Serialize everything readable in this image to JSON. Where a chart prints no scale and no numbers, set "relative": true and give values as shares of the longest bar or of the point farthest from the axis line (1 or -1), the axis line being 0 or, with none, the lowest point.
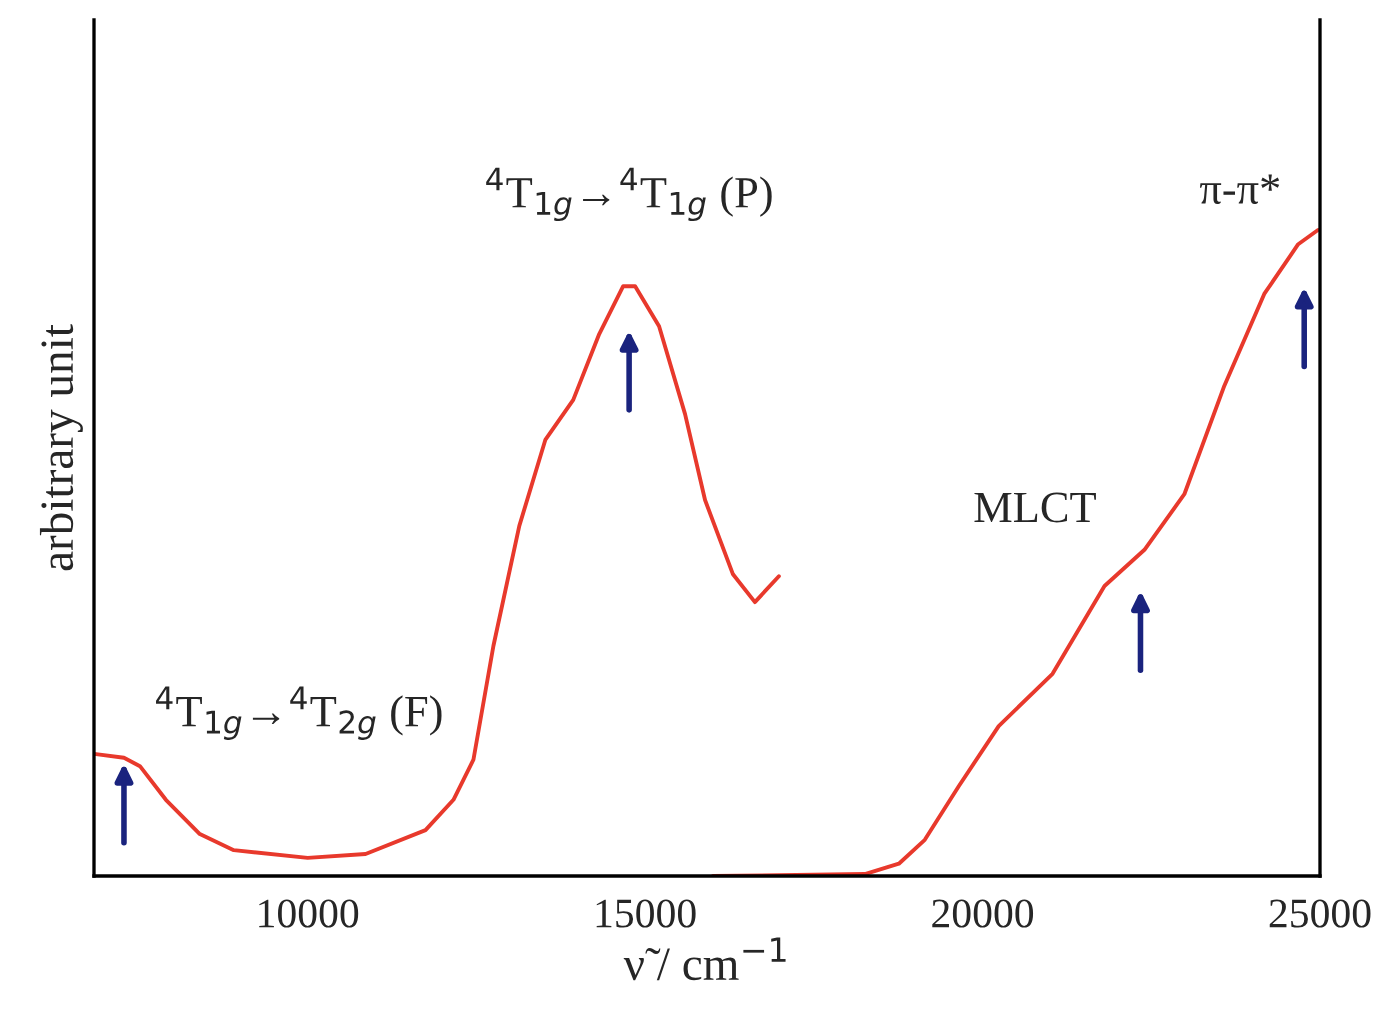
{
  "chart_data": {
    "type": "line",
    "relative": true,
    "xlabel": "ν̃ / cm$^{−1}$",
    "ylabel": "arbitrary unit",
    "xlim": [
      6834,
      25000
    ],
    "xticks": [
      10000,
      15000,
      20000,
      25000
    ],
    "grid": false,
    "legend": false,
    "marker": "none",
    "line_style": "solid",
    "series": [
      {
        "color": "#e8392c",
        "x": [
          6834,
          7278,
          7515,
          7899,
          8402,
          8905,
          10000,
          10858,
          11746,
          12160,
          12456,
          12752,
          13136,
          13521,
          13935,
          14320,
          14675,
          14852,
          15207,
          15592,
          15888,
          16302,
          16627,
          16982
        ],
        "values": [
          0.189,
          0.183,
          0.17,
          0.118,
          0.065,
          0.04,
          0.028,
          0.034,
          0.071,
          0.118,
          0.18,
          0.356,
          0.542,
          0.675,
          0.737,
          0.839,
          0.913,
          0.913,
          0.851,
          0.715,
          0.582,
          0.467,
          0.424,
          0.464
        ]
      },
      {
        "color": "#e8392c",
        "x": [
          16006,
          18256,
          18760,
          19144,
          19647,
          20239,
          21037,
          21807,
          22399,
          22990,
          23583,
          24174,
          24677,
          24970
        ],
        "values": [
          0,
          0.003,
          0.019,
          0.056,
          0.139,
          0.232,
          0.313,
          0.449,
          0.505,
          0.591,
          0.759,
          0.901,
          0.978,
          1.0
        ]
      }
    ],
    "annotations": [
      {
        "text": "$^{4}$T$_{1g}$→$^{4}$T$_{2g}$ (F)",
        "x": 7278,
        "y": 0.183
      },
      {
        "text": "$^{4}$T$_{1g}$→$^{4}$T$_{1g}$ (P)",
        "x": 14763,
        "y": 0.913
      },
      {
        "text": "MLCT",
        "x": 22340,
        "y": 0.5
      },
      {
        "text": "π-π*",
        "x": 24766,
        "y": 0.98
      }
    ]
  }
}
